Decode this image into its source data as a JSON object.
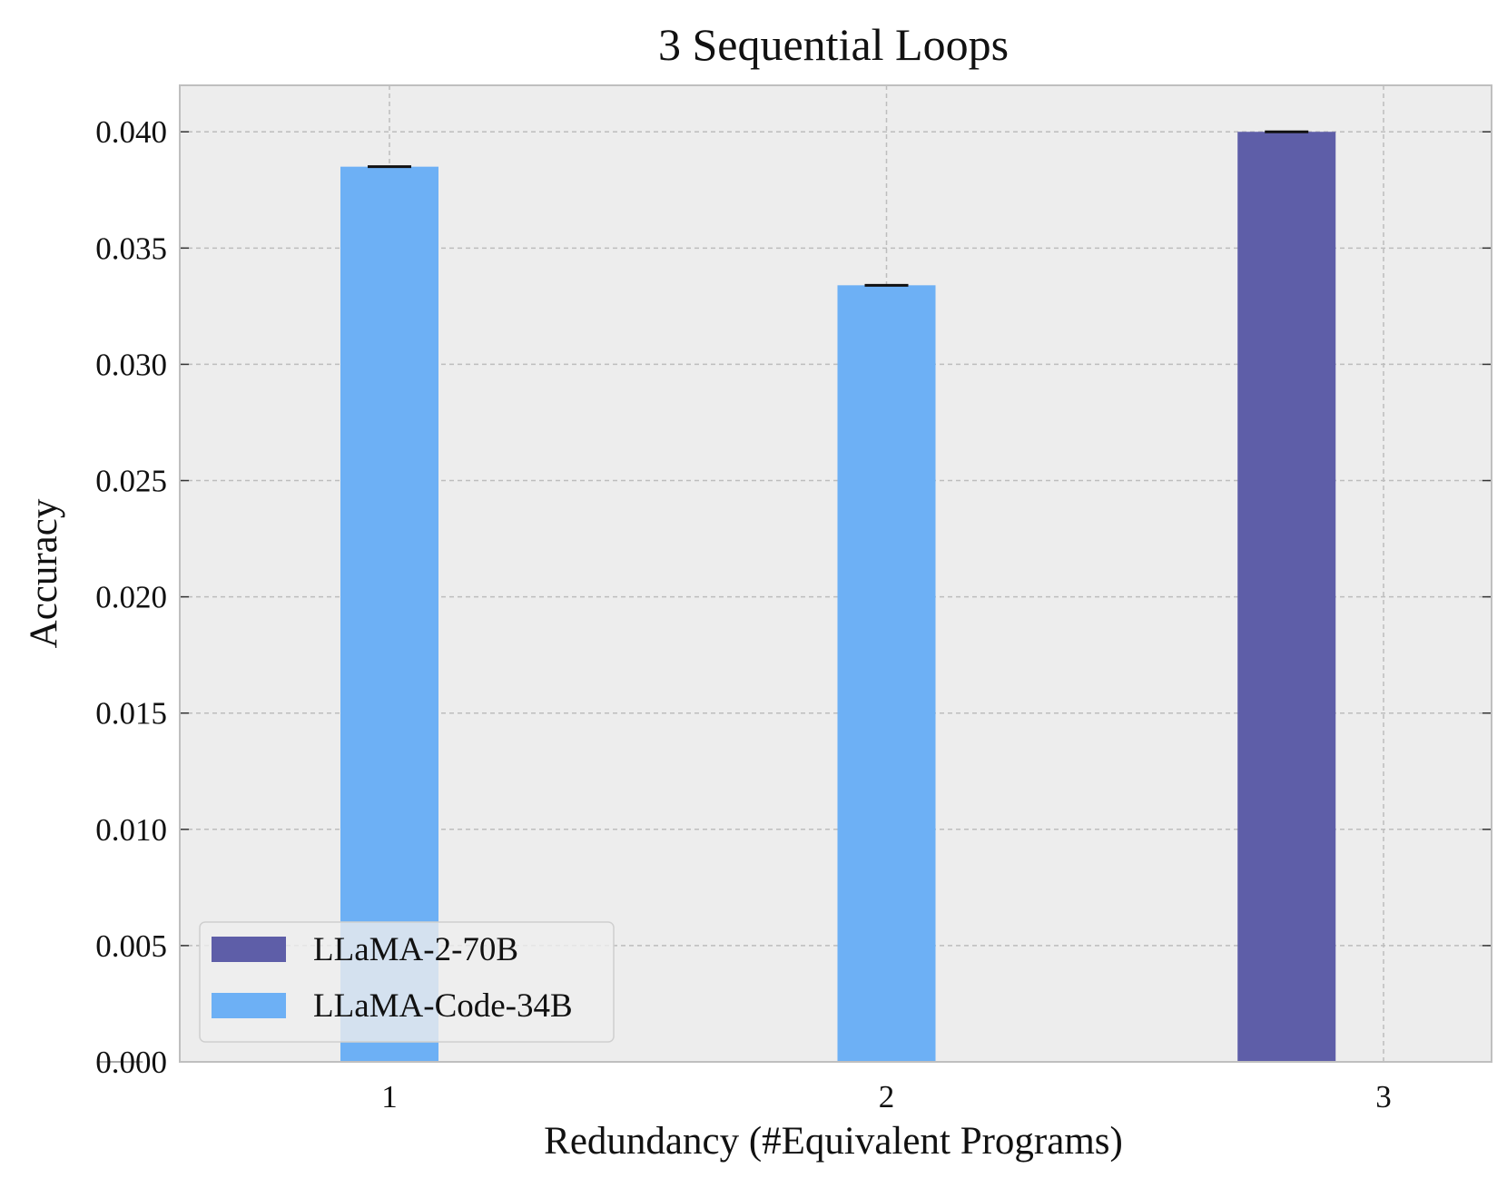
{
  "chart_data": {
    "type": "bar",
    "title": "3 Sequential Loops",
    "xlabel": "Redundancy (#Equivalent Programs)",
    "ylabel": "Accuracy",
    "categories": [
      "1",
      "2",
      "3"
    ],
    "series": [
      {
        "name": "LLaMA-2-70B",
        "color": "#5e5ea8",
        "values": [
          0.0,
          0.0,
          0.04
        ]
      },
      {
        "name": "LLaMA-Code-34B",
        "color": "#6db0f5",
        "values": [
          0.0385,
          0.0334,
          0.0
        ]
      }
    ],
    "ylim": [
      0,
      0.042
    ],
    "yticks": [
      "0.000",
      "0.005",
      "0.010",
      "0.015",
      "0.020",
      "0.025",
      "0.030",
      "0.035",
      "0.040"
    ],
    "grid": true,
    "legend_position": "lower-left",
    "colors": {
      "plot_background": "#ededed",
      "grid": "#bdbdbd",
      "spine": "#bfbfbf"
    }
  }
}
